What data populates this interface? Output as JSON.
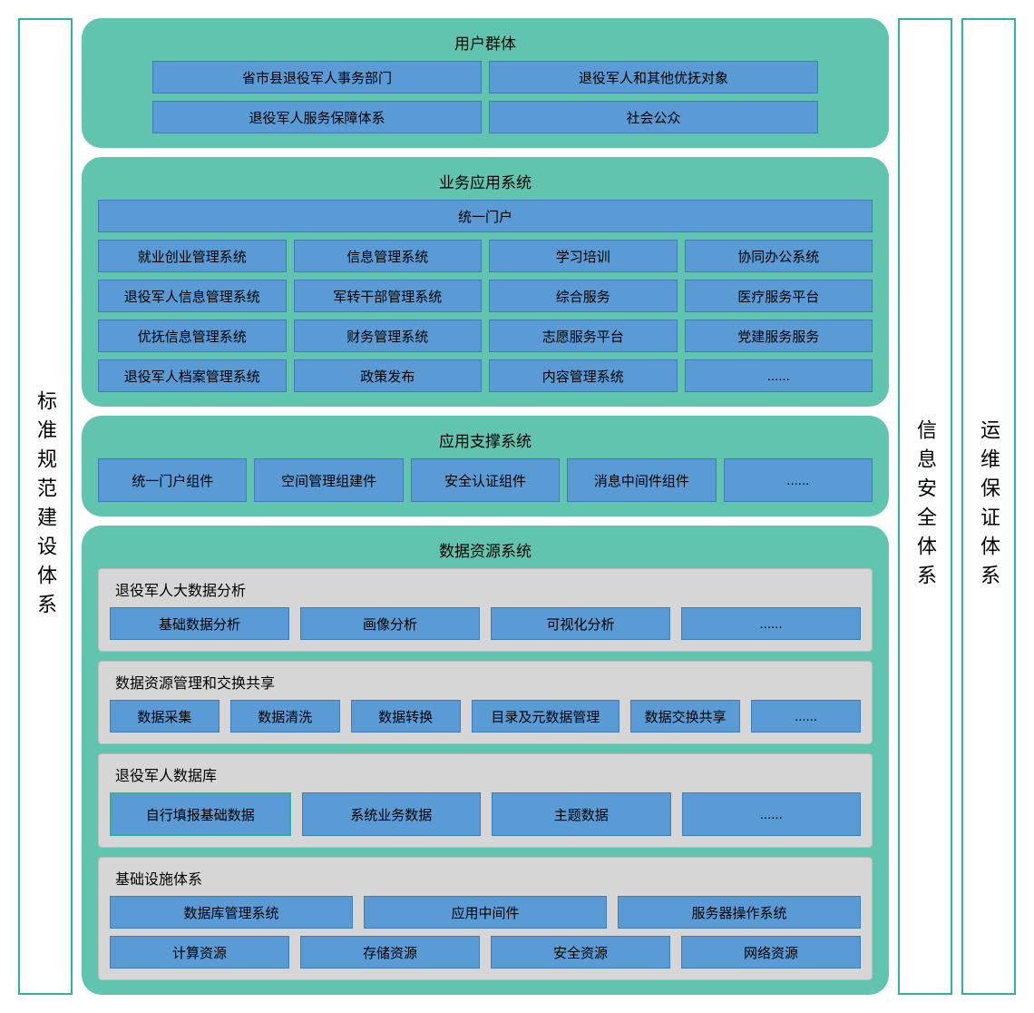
{
  "colors": {
    "teal_bg": "#61c4af",
    "teal_border": "#2db39f",
    "blue_cell": "#5a9bd5",
    "blue_cell_border": "#3d7db8",
    "gray_sub": "#d6d6d6",
    "gray_sub_border": "#bcbcbc",
    "page_bg": "#ffffff",
    "text": "#000000"
  },
  "typography": {
    "base_fontsize": 15,
    "title_fontsize": 17,
    "side_fontsize": 22
  },
  "side": {
    "left": "标准规范建设体系",
    "right1": "信息安全体系",
    "right2": "运维保证体系"
  },
  "user_group": {
    "title": "用户群体",
    "items": [
      "省市县退役军人事务部门",
      "退役军人和其他优抚对象",
      "退役军人服务保障体系",
      "社会公众"
    ]
  },
  "biz_app": {
    "title": "业务应用系统",
    "portal": "统一门户",
    "rows": [
      [
        "就业创业管理系统",
        "信息管理系统",
        "学习培训",
        "协同办公系统"
      ],
      [
        "退役军人信息管理系统",
        "军转干部管理系统",
        "综合服务",
        "医疗服务平台"
      ],
      [
        "优抚信息管理系统",
        "财务管理系统",
        "志愿服务平台",
        "党建服务服务"
      ],
      [
        "退役军人档案管理系统",
        "政策发布",
        "内容管理系统",
        "......"
      ]
    ]
  },
  "app_support": {
    "title": "应用支撑系统",
    "items": [
      "统一门户组件",
      "空间管理组建件",
      "安全认证组件",
      "消息中间件组件",
      "......"
    ]
  },
  "data_sys": {
    "title": "数据资源系统",
    "big_data": {
      "title": "退役军人大数据分析",
      "items": [
        "基础数据分析",
        "画像分析",
        "可视化分析",
        "......"
      ]
    },
    "data_mgmt": {
      "title": "数据资源管理和交换共享",
      "items": [
        "数据采集",
        "数据清洗",
        "数据转换",
        "目录及元数据管理",
        "数据交换共享",
        "......"
      ]
    },
    "database": {
      "title": "退役军人数据库",
      "items": [
        "自行填报基础数据",
        "系统业务数据",
        "主题数据",
        "......"
      ]
    },
    "infra": {
      "title": "基础设施体系",
      "row1": [
        "数据库管理系统",
        "应用中间件",
        "服务器操作系统"
      ],
      "row2": [
        "计算资源",
        "存储资源",
        "安全资源",
        "网络资源"
      ]
    }
  }
}
